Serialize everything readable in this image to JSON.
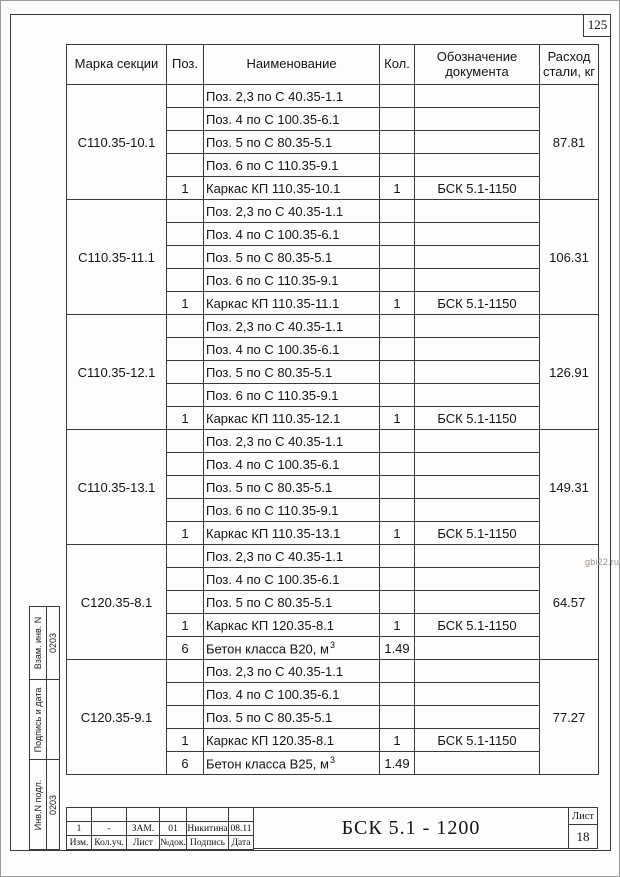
{
  "page": {
    "number": "125",
    "watermark": "gbi22.ru"
  },
  "table": {
    "headers": {
      "mark": "Марка секции",
      "pos": "Поз.",
      "name": "Наименование",
      "qty": "Кол.",
      "doc": "Обозначение документа",
      "steel": "Расход стали, кг"
    },
    "blocks": [
      {
        "mark": "С110.35-10.1",
        "steel": "87.81",
        "rows": [
          {
            "pos": "",
            "name": "Поз. 2,3 по С 40.35-1.1",
            "qty": "",
            "doc": ""
          },
          {
            "pos": "",
            "name": "Поз. 4 по С 100.35-6.1",
            "qty": "",
            "doc": ""
          },
          {
            "pos": "",
            "name": "Поз. 5 по С 80.35-5.1",
            "qty": "",
            "doc": ""
          },
          {
            "pos": "",
            "name": "Поз. 6 по С 110.35-9.1",
            "qty": "",
            "doc": ""
          },
          {
            "pos": "1",
            "name": "Каркас КП 110.35-10.1",
            "qty": "1",
            "doc": "БСК 5.1-1150"
          }
        ]
      },
      {
        "mark": "С110.35-11.1",
        "steel": "106.31",
        "rows": [
          {
            "pos": "",
            "name": "Поз. 2,3 по С 40.35-1.1",
            "qty": "",
            "doc": ""
          },
          {
            "pos": "",
            "name": "Поз. 4 по С 100.35-6.1",
            "qty": "",
            "doc": ""
          },
          {
            "pos": "",
            "name": "Поз. 5 по С 80.35-5.1",
            "qty": "",
            "doc": ""
          },
          {
            "pos": "",
            "name": "Поз. 6 по С 110.35-9.1",
            "qty": "",
            "doc": ""
          },
          {
            "pos": "1",
            "name": "Каркас КП 110.35-11.1",
            "qty": "1",
            "doc": "БСК 5.1-1150"
          }
        ]
      },
      {
        "mark": "С110.35-12.1",
        "steel": "126.91",
        "rows": [
          {
            "pos": "",
            "name": "Поз. 2,3 по С 40.35-1.1",
            "qty": "",
            "doc": ""
          },
          {
            "pos": "",
            "name": "Поз. 4 по С 100.35-6.1",
            "qty": "",
            "doc": ""
          },
          {
            "pos": "",
            "name": "Поз. 5 по С 80.35-5.1",
            "qty": "",
            "doc": ""
          },
          {
            "pos": "",
            "name": "Поз. 6 по С 110.35-9.1",
            "qty": "",
            "doc": ""
          },
          {
            "pos": "1",
            "name": "Каркас КП 110.35-12.1",
            "qty": "1",
            "doc": "БСК 5.1-1150"
          }
        ]
      },
      {
        "mark": "С110.35-13.1",
        "steel": "149.31",
        "rows": [
          {
            "pos": "",
            "name": "Поз. 2,3 по С 40.35-1.1",
            "qty": "",
            "doc": ""
          },
          {
            "pos": "",
            "name": "Поз. 4 по С 100.35-6.1",
            "qty": "",
            "doc": ""
          },
          {
            "pos": "",
            "name": "Поз. 5 по С 80.35-5.1",
            "qty": "",
            "doc": ""
          },
          {
            "pos": "",
            "name": "Поз. 6 по С 110.35-9.1",
            "qty": "",
            "doc": ""
          },
          {
            "pos": "1",
            "name": "Каркас КП 110.35-13.1",
            "qty": "1",
            "doc": "БСК 5.1-1150"
          }
        ]
      },
      {
        "mark": "С120.35-8.1",
        "steel": "64.57",
        "rows": [
          {
            "pos": "",
            "name": "Поз. 2,3 по С 40.35-1.1",
            "qty": "",
            "doc": ""
          },
          {
            "pos": "",
            "name": "Поз. 4 по С 100.35-6.1",
            "qty": "",
            "doc": ""
          },
          {
            "pos": "",
            "name": "Поз. 5 по С 80.35-5.1",
            "qty": "",
            "doc": ""
          },
          {
            "pos": "1",
            "name": "Каркас КП 120.35-8.1",
            "qty": "1",
            "doc": "БСК 5.1-1150"
          },
          {
            "pos": "6",
            "name": "Бетон класса В20, м",
            "sup": "3",
            "qty": "1.49",
            "doc": ""
          }
        ]
      },
      {
        "mark": "С120.35-9.1",
        "steel": "77.27",
        "rows": [
          {
            "pos": "",
            "name": "Поз. 2,3 по С 40.35-1.1",
            "qty": "",
            "doc": ""
          },
          {
            "pos": "",
            "name": "Поз. 4 по С 100.35-6.1",
            "qty": "",
            "doc": ""
          },
          {
            "pos": "",
            "name": "Поз. 5 по С 80.35-5.1",
            "qty": "",
            "doc": ""
          },
          {
            "pos": "1",
            "name": "Каркас КП 120.35-8.1",
            "qty": "1",
            "doc": "БСК 5.1-1150"
          },
          {
            "pos": "6",
            "name": "Бетон класса В25, м",
            "sup": "3",
            "qty": "1.49",
            "doc": ""
          }
        ]
      }
    ]
  },
  "sidebar": {
    "cells": [
      {
        "label": "Взам. инв. N",
        "value": "0203"
      },
      {
        "label": "Подпись и дата",
        "value": ""
      },
      {
        "label": "Инв.N подл.",
        "value": "0203"
      }
    ]
  },
  "titleblock": {
    "revision_values": [
      "1",
      "-",
      "ЗАМ.",
      "01",
      "Никитина",
      "08.11"
    ],
    "revision_labels": [
      "Изм.",
      "Кол.уч.",
      "Лист",
      "№док.",
      "Подпись",
      "Дата"
    ],
    "document": "БСК 5.1 - 1200",
    "sheet_label": "Лист",
    "sheet_number": "18"
  }
}
